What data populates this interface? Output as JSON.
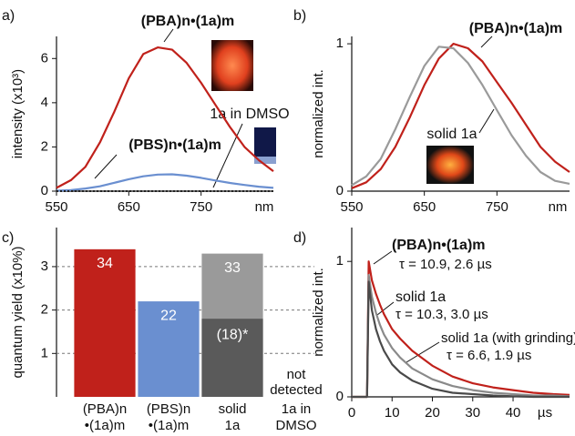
{
  "chart_data": [
    {
      "type": "line",
      "panel_label": "a)",
      "y_label": "intensity (x10³)",
      "x_unit": "nm",
      "x": [
        550,
        570,
        590,
        610,
        630,
        650,
        670,
        690,
        710,
        730,
        750,
        770,
        790,
        810,
        830,
        850
      ],
      "series": [
        {
          "name": "(PBA)n•(1a)m",
          "color": "#c0211b",
          "values": [
            0.15,
            0.5,
            1.1,
            2.2,
            3.6,
            5.1,
            6.2,
            6.5,
            6.4,
            5.8,
            4.9,
            3.9,
            2.9,
            2.0,
            1.4,
            0.9
          ]
        },
        {
          "name": "(PBS)n•(1a)m",
          "color": "#6a8fd0",
          "values": [
            0.02,
            0.05,
            0.12,
            0.22,
            0.38,
            0.54,
            0.67,
            0.75,
            0.76,
            0.7,
            0.6,
            0.48,
            0.37,
            0.28,
            0.2,
            0.15
          ]
        },
        {
          "name": "1a in DMSO",
          "color": "#222222",
          "style": "dotted",
          "values": [
            0,
            0,
            0,
            0,
            0,
            0,
            0,
            0,
            0,
            0,
            0,
            0,
            0,
            0,
            0,
            0
          ]
        }
      ],
      "xlim": [
        550,
        850
      ],
      "xticks": [
        550,
        650,
        750
      ],
      "ylim": [
        0,
        7
      ],
      "yticks": [
        0,
        2,
        4,
        6
      ]
    },
    {
      "type": "line",
      "panel_label": "b)",
      "y_label": "normalized int.",
      "x_unit": "nm",
      "x": [
        550,
        570,
        590,
        610,
        630,
        650,
        670,
        690,
        710,
        730,
        750,
        770,
        790,
        810,
        830,
        850
      ],
      "series": [
        {
          "name": "(PBA)n•(1a)m",
          "color": "#c0211b",
          "values": [
            0.02,
            0.06,
            0.15,
            0.3,
            0.5,
            0.72,
            0.9,
            1.0,
            0.97,
            0.88,
            0.74,
            0.6,
            0.45,
            0.3,
            0.2,
            0.13
          ]
        },
        {
          "name": "solid 1a",
          "color": "#9a9a9a",
          "values": [
            0.04,
            0.1,
            0.22,
            0.42,
            0.64,
            0.85,
            0.98,
            0.97,
            0.87,
            0.72,
            0.55,
            0.38,
            0.24,
            0.13,
            0.07,
            0.05
          ]
        }
      ],
      "xlim": [
        550,
        850
      ],
      "xticks": [
        550,
        650,
        750
      ],
      "ylim": [
        0,
        1.05
      ],
      "yticks": [
        0,
        1
      ]
    },
    {
      "type": "bar",
      "panel_label": "c)",
      "y_label": "quantum yield (x10%)",
      "categories": [
        [
          "(PBA)n",
          "•(1a)m"
        ],
        [
          "(PBS)n",
          "•(1a)m"
        ],
        [
          "solid",
          "1a"
        ],
        [
          "1a in",
          "DMSO"
        ]
      ],
      "values": [
        3.4,
        2.2,
        3.3,
        null
      ],
      "value_labels": [
        "34",
        "22",
        "33",
        null
      ],
      "colors": [
        "#c0211b",
        "#6a8fd0",
        "#9a9a9a",
        null
      ],
      "inner_values": [
        null,
        null,
        1.8,
        null
      ],
      "inner_value_labels": [
        null,
        null,
        "(18)*",
        null
      ],
      "inner_color": "#5a5a5a",
      "no_data_label": [
        "not",
        "detected"
      ],
      "ylim": [
        0,
        3.9
      ],
      "yticks": [
        1,
        2,
        3
      ],
      "grid": true
    },
    {
      "type": "line",
      "panel_label": "d)",
      "y_label": "normalized int.",
      "x_unit": "µs",
      "x": [
        0,
        3.8,
        4.2,
        5,
        6,
        7,
        8,
        10,
        12,
        15,
        20,
        25,
        30,
        35,
        40,
        45,
        50,
        54
      ],
      "series": [
        {
          "name": "(PBA)n•(1a)m",
          "note": "τ = 10.9, 2.6 µs",
          "color": "#c0211b",
          "values": [
            0,
            0,
            1,
            0.86,
            0.76,
            0.68,
            0.61,
            0.5,
            0.43,
            0.34,
            0.23,
            0.15,
            0.1,
            0.07,
            0.05,
            0.03,
            0.02,
            0.015
          ]
        },
        {
          "name": "solid 1a",
          "note": "τ = 10.3, 3.0 µs",
          "color": "#8a8a8a",
          "values": [
            0,
            0,
            0.9,
            0.74,
            0.62,
            0.53,
            0.46,
            0.36,
            0.29,
            0.21,
            0.13,
            0.08,
            0.05,
            0.03,
            0.02,
            0.01,
            0.01,
            0.005
          ]
        },
        {
          "name": "solid 1a (with grinding)",
          "note": "τ = 6.6, 1.9 µs",
          "color": "#4a4a4a",
          "values": [
            0,
            0,
            0.85,
            0.64,
            0.5,
            0.41,
            0.34,
            0.24,
            0.18,
            0.12,
            0.06,
            0.03,
            0.02,
            0.01,
            0.005,
            0,
            0,
            0
          ]
        }
      ],
      "xlim": [
        0,
        54
      ],
      "xticks": [
        0,
        10,
        20,
        30,
        40
      ],
      "ylim": [
        0,
        1.25
      ],
      "yticks": [
        0,
        1
      ]
    }
  ]
}
